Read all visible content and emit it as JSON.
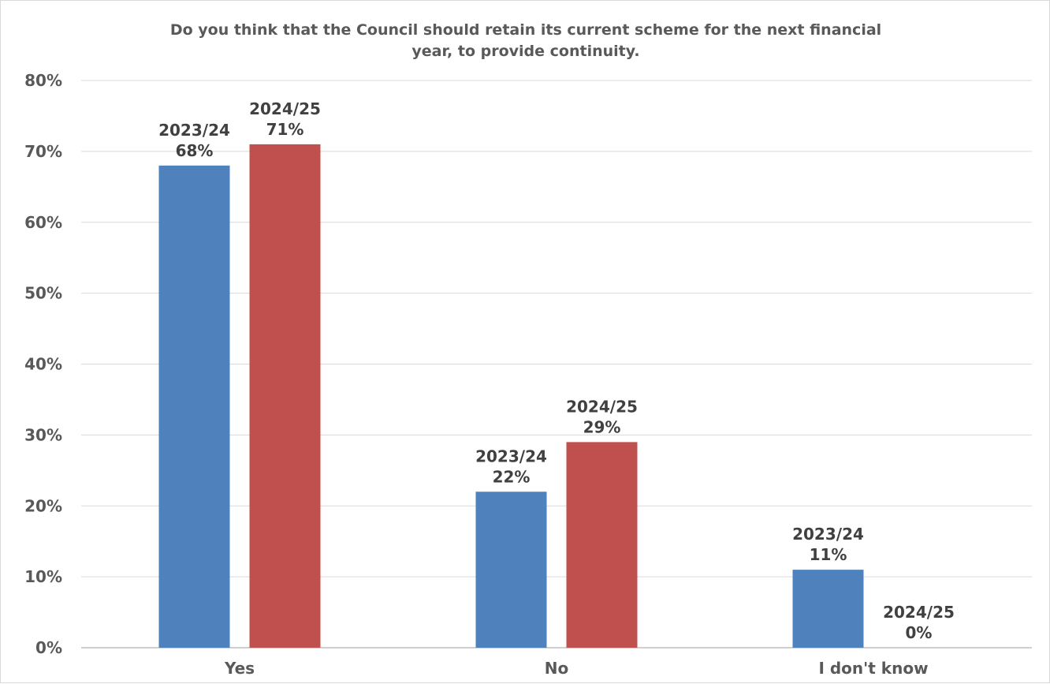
{
  "chart_data": {
    "type": "bar",
    "title": "Do you think that the Council should retain its current scheme for the next financial year, to provide continuity.",
    "title_lines": [
      "Do you think that the Council should retain its current scheme for the next financial",
      "year, to provide continuity."
    ],
    "categories": [
      "Yes",
      "No",
      "I don't know"
    ],
    "series": [
      {
        "name": "2023/24",
        "color": "#4f81bd",
        "values": [
          68,
          22,
          11
        ]
      },
      {
        "name": "2024/25",
        "color": "#c0504d",
        "values": [
          71,
          29,
          0
        ]
      }
    ],
    "ylim": [
      0,
      80
    ],
    "yticks": [
      "0%",
      "10%",
      "20%",
      "30%",
      "40%",
      "50%",
      "60%",
      "70%",
      "80%"
    ],
    "ytick_values": [
      0,
      10,
      20,
      30,
      40,
      50,
      60,
      70,
      80
    ],
    "value_suffix": "%",
    "xlabel": "",
    "ylabel": "",
    "grid": true,
    "legend": "none"
  }
}
